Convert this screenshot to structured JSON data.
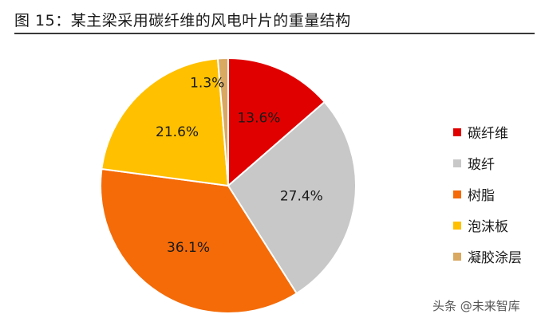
{
  "title": "图 15：某主梁采用碳纤维的风电叶片的重量结构",
  "watermark": "头条 @未来智库",
  "chart_data": {
    "type": "pie",
    "title": "图 15：某主梁采用碳纤维的风电叶片的重量结构",
    "legend_position": "right",
    "slices": [
      {
        "name": "碳纤维",
        "value": 13.6,
        "label": "13.6%",
        "color": "#e10000"
      },
      {
        "name": "玻纤",
        "value": 27.4,
        "label": "27.4%",
        "color": "#c8c8c8"
      },
      {
        "name": "树脂",
        "value": 36.1,
        "label": "36.1%",
        "color": "#f46b08"
      },
      {
        "name": "泡沫板",
        "value": 21.6,
        "label": "21.6%",
        "color": "#ffc000"
      },
      {
        "name": "凝胶涂层",
        "value": 1.3,
        "label": "1.3%",
        "color": "#d9a861"
      }
    ]
  }
}
